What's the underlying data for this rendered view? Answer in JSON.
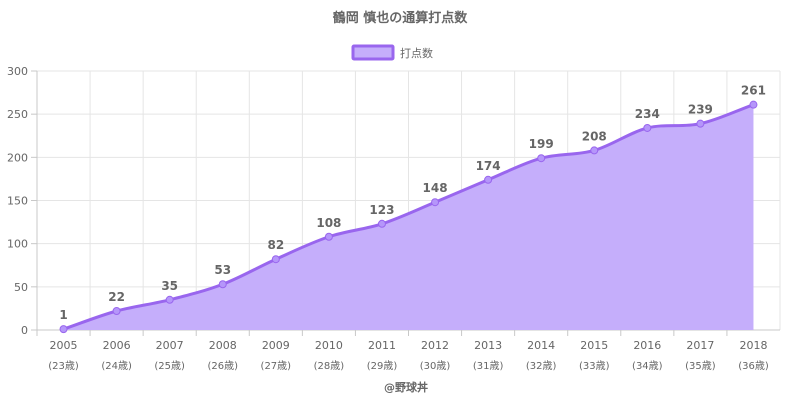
{
  "chart_data": {
    "type": "area",
    "title": "鶴岡 慎也の通算打点数",
    "legend": {
      "label": "打点数",
      "placement": "top-center"
    },
    "categories": [
      "2005",
      "2006",
      "2007",
      "2008",
      "2009",
      "2010",
      "2011",
      "2012",
      "2013",
      "2014",
      "2015",
      "2016",
      "2017",
      "2018"
    ],
    "sublabels": [
      "(23歳)",
      "(24歳)",
      "(25歳)",
      "(26歳)",
      "(27歳)",
      "(28歳)",
      "(29歳)",
      "(30歳)",
      "(31歳)",
      "(32歳)",
      "(33歳)",
      "(34歳)",
      "(35歳)",
      "(36歳)"
    ],
    "series": [
      {
        "name": "打点数",
        "values": [
          1,
          22,
          35,
          53,
          82,
          108,
          123,
          148,
          174,
          199,
          208,
          234,
          239,
          261
        ]
      }
    ],
    "ylim": [
      0,
      300
    ],
    "yticks": [
      0,
      50,
      100,
      150,
      200,
      250,
      300
    ],
    "grid": true,
    "data_labels": true
  },
  "colors": {
    "line": "#9966ee",
    "fill": "#c5aefb",
    "point": "#b596fa"
  },
  "credit": "@野球丼"
}
